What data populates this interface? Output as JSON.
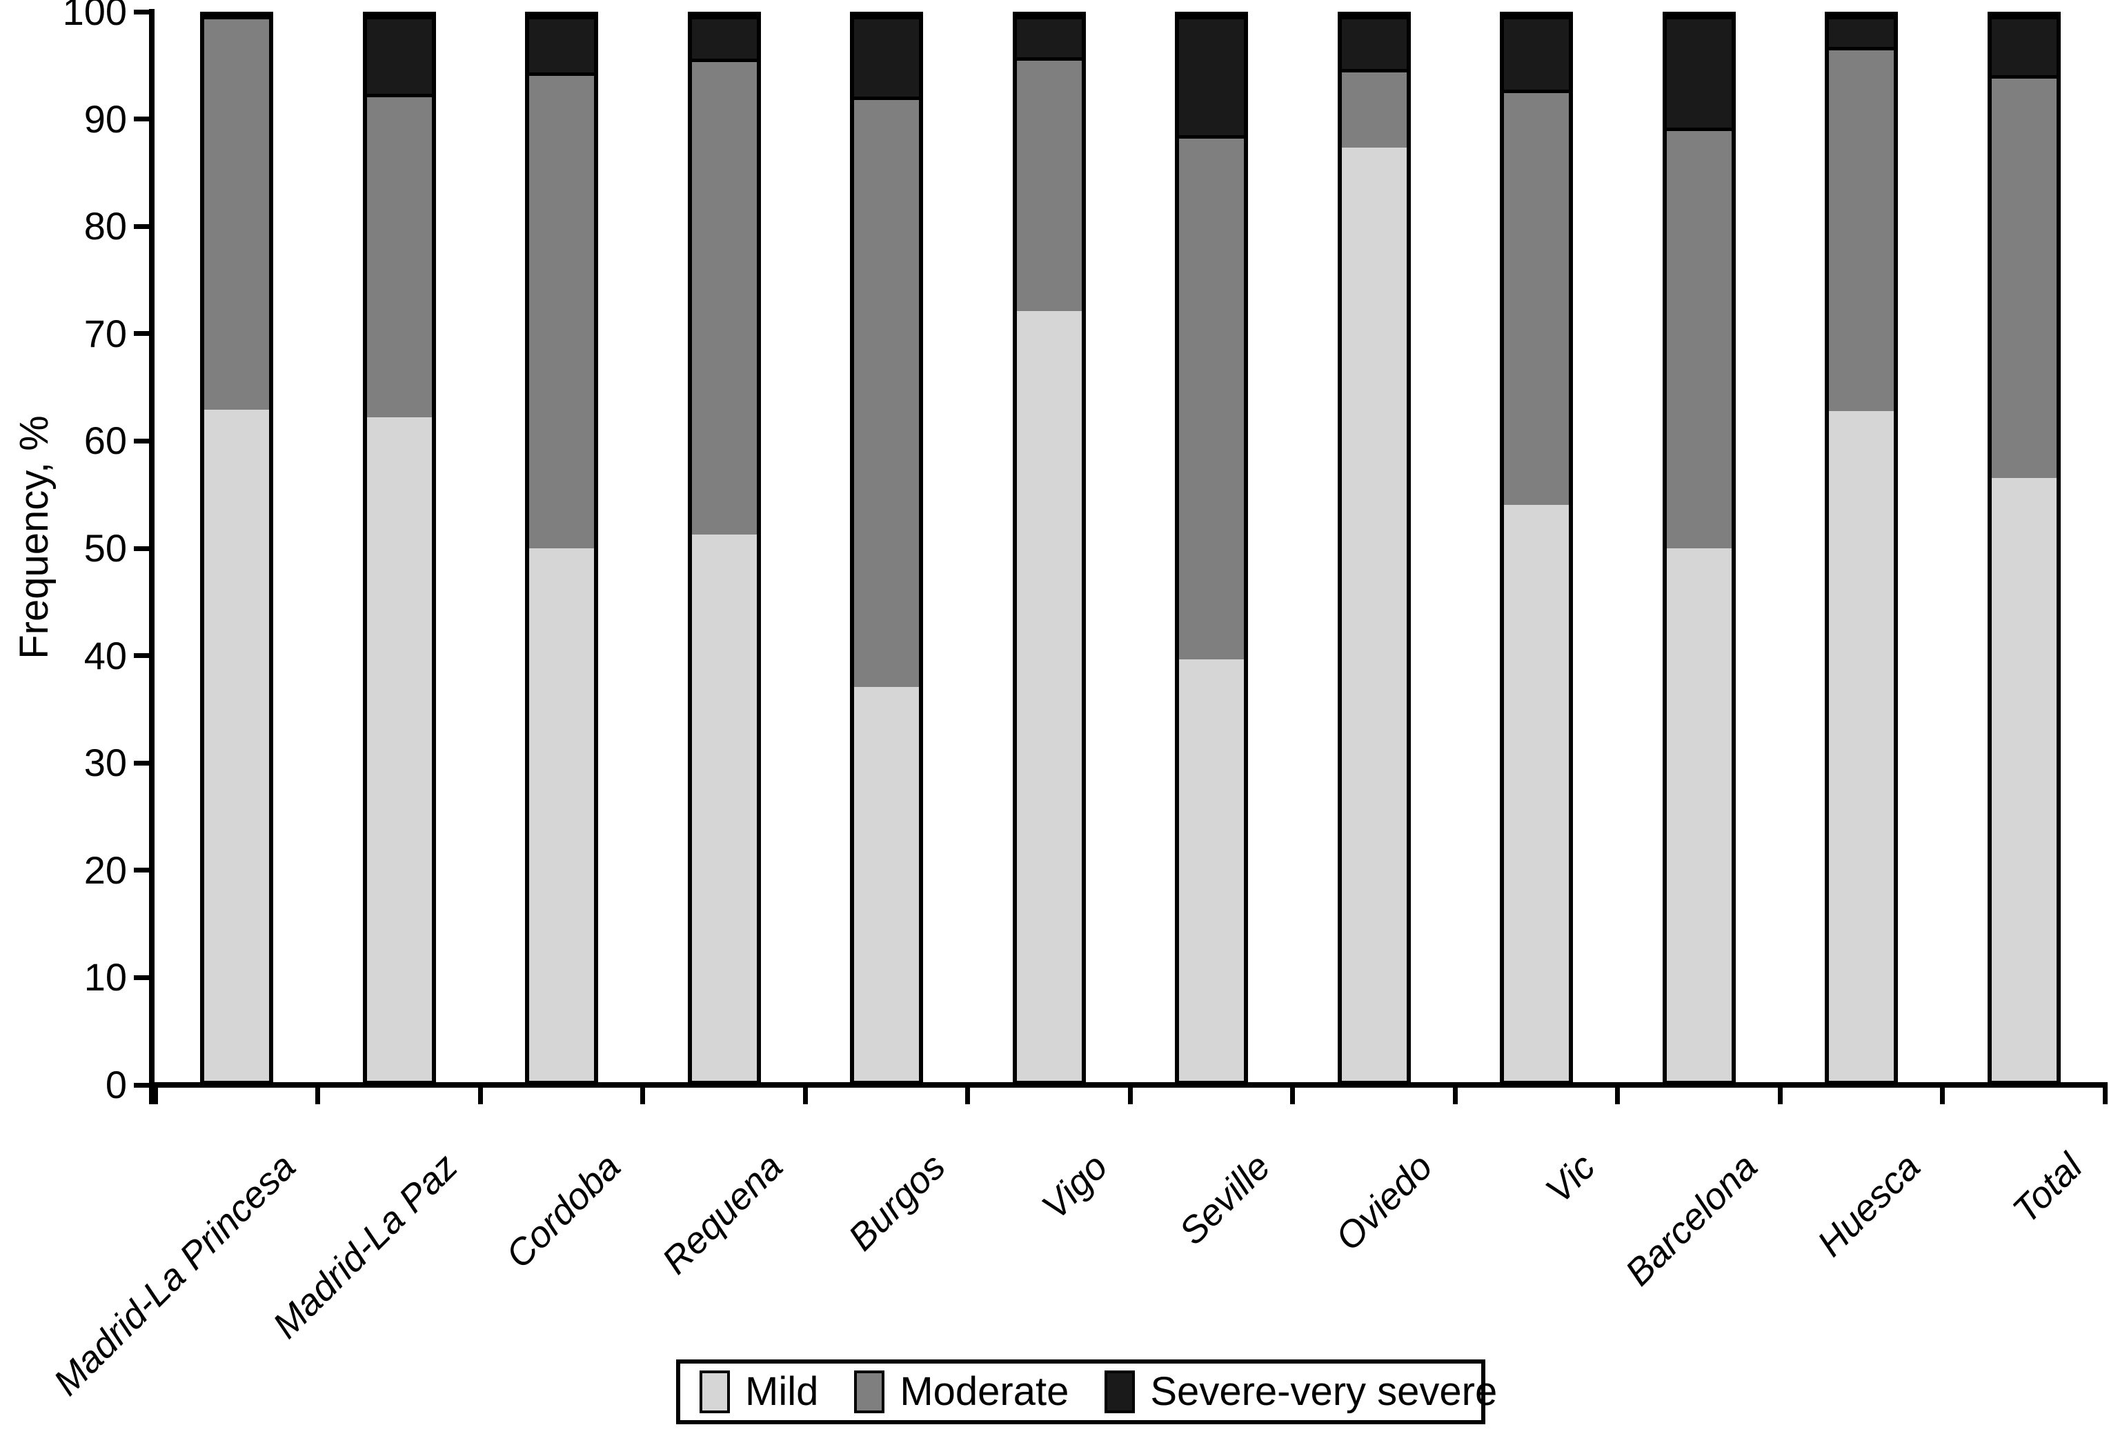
{
  "chart_data": {
    "type": "bar",
    "stacked": true,
    "title": "",
    "ylabel": "Frequency, %",
    "xlabel": "",
    "ylim": [
      0,
      100
    ],
    "ytick_labels": [
      "0",
      "10",
      "20",
      "30",
      "40",
      "50",
      "60",
      "70",
      "80",
      "90",
      "100"
    ],
    "grid": false,
    "legend_position": "bottom",
    "categories": [
      "Madrid-La Princesa",
      "Madrid-La Paz",
      "Cordoba",
      "Requena",
      "Burgos",
      "Vigo",
      "Seville",
      "Oviedo",
      "Vic",
      "Barcelona",
      "Huesca",
      "Total"
    ],
    "series": [
      {
        "name": "Mild",
        "color": "#d6d6d6",
        "values": [
          63.0,
          62.3,
          50.0,
          51.3,
          37.0,
          72.3,
          39.6,
          87.6,
          54.1,
          50.0,
          62.9,
          56.6
        ]
      },
      {
        "name": "Moderate",
        "color": "#7f7f7f",
        "values": [
          37.0,
          30.4,
          44.7,
          44.7,
          55.4,
          23.8,
          49.2,
          7.4,
          39.0,
          39.5,
          34.2,
          37.8
        ]
      },
      {
        "name": "Severe-very severe",
        "color": "#1a1a1a",
        "values": [
          0.0,
          7.3,
          5.3,
          4.0,
          7.6,
          3.9,
          11.2,
          5.0,
          6.9,
          10.5,
          2.9,
          5.6
        ]
      }
    ]
  }
}
